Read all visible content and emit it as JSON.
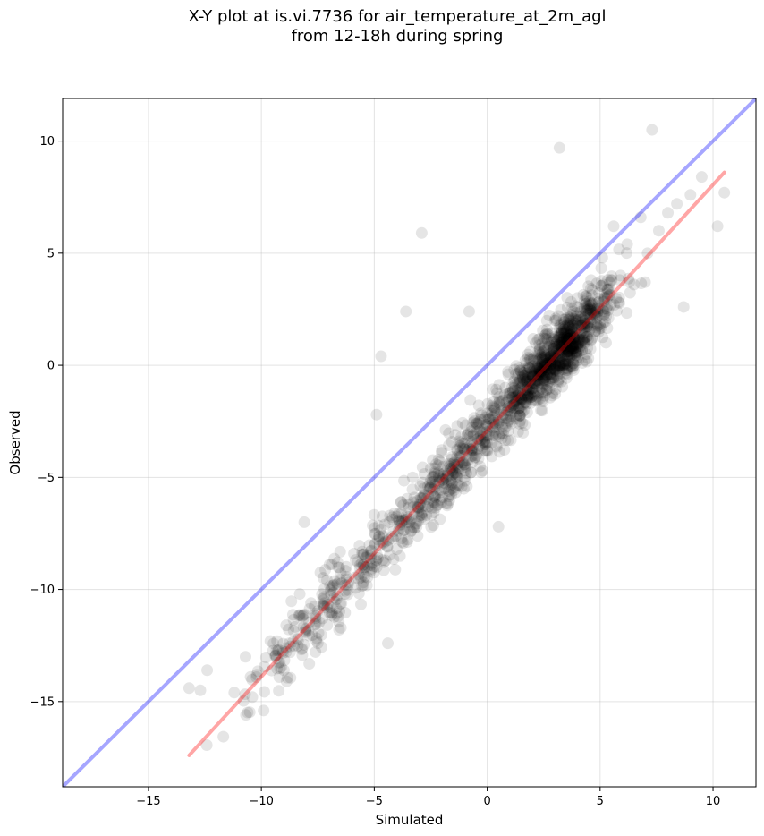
{
  "chart_data": {
    "type": "scatter",
    "title": "X-Y plot at is.vi.7736 for air_temperature_at_2m_agl",
    "subtitle": "from 12-18h during spring",
    "xlabel": "Simulated",
    "ylabel": "Observed",
    "xlim": [
      -18.8,
      11.9
    ],
    "ylim": [
      -18.8,
      11.9
    ],
    "xticks": [
      -15,
      -10,
      -5,
      0,
      5,
      10
    ],
    "xtick_labels": [
      "−15",
      "−10",
      "−5",
      "0",
      "5",
      "10"
    ],
    "yticks": [
      -15,
      -10,
      -5,
      0,
      5,
      10
    ],
    "ytick_labels": [
      "−15",
      "−10",
      "−5",
      "0",
      "5",
      "10"
    ],
    "grid": true,
    "point_color": "#000000",
    "point_alpha": 0.1,
    "identity_line": {
      "x": [
        -18.8,
        11.9
      ],
      "y": [
        -18.8,
        11.9
      ],
      "color": "#0000ff",
      "alpha": 0.35
    },
    "fit_line": {
      "x": [
        -13.2,
        10.5
      ],
      "y": [
        -17.4,
        8.6
      ],
      "color": "#ff0000",
      "alpha": 0.35
    },
    "points_note": "dense cloud of ~2000 semi-transparent points clustered along the fit line",
    "sample_points": [
      [
        -13.2,
        -14.4
      ],
      [
        -12.7,
        -14.5
      ],
      [
        -12.4,
        -13.6
      ],
      [
        -11.2,
        -14.6
      ],
      [
        -10.7,
        -13.0
      ],
      [
        -10.4,
        -14.8
      ],
      [
        -10.2,
        -13.8
      ],
      [
        -9.9,
        -15.4
      ],
      [
        -9.6,
        -12.3
      ],
      [
        -9.0,
        -13.6
      ],
      [
        -8.9,
        -11.6
      ],
      [
        -8.3,
        -10.2
      ],
      [
        -8.1,
        -7.0
      ],
      [
        -7.6,
        -11.2
      ],
      [
        -7.2,
        -10.8
      ],
      [
        -6.8,
        -9.8
      ],
      [
        -6.3,
        -10.2
      ],
      [
        -5.9,
        -8.4
      ],
      [
        -5.4,
        -9.0
      ],
      [
        -5.0,
        -8.0
      ],
      [
        -4.9,
        -2.2
      ],
      [
        -4.7,
        0.4
      ],
      [
        -4.6,
        -7.6
      ],
      [
        -4.4,
        -12.4
      ],
      [
        -4.1,
        -6.6
      ],
      [
        -3.8,
        -7.0
      ],
      [
        -3.6,
        2.4
      ],
      [
        -3.3,
        -5.0
      ],
      [
        -3.0,
        -6.2
      ],
      [
        -2.9,
        5.9
      ],
      [
        -2.5,
        -4.6
      ],
      [
        -2.1,
        -6.0
      ],
      [
        -1.6,
        -4.2
      ],
      [
        -1.2,
        -3.6
      ],
      [
        -0.9,
        -5.4
      ],
      [
        -0.8,
        2.4
      ],
      [
        -0.5,
        -2.6
      ],
      [
        -0.2,
        -3.0
      ],
      [
        0.2,
        -1.8
      ],
      [
        0.5,
        -7.2
      ],
      [
        0.8,
        -1.0
      ],
      [
        1.2,
        -0.2
      ],
      [
        1.5,
        -2.0
      ],
      [
        1.9,
        0.6
      ],
      [
        2.2,
        -1.4
      ],
      [
        2.5,
        1.2
      ],
      [
        2.8,
        -0.4
      ],
      [
        3.0,
        2.0
      ],
      [
        3.2,
        9.7
      ],
      [
        3.4,
        1.6
      ],
      [
        3.6,
        0.6
      ],
      [
        3.8,
        2.4
      ],
      [
        4.0,
        3.0
      ],
      [
        4.3,
        1.0
      ],
      [
        4.6,
        3.8
      ],
      [
        4.9,
        2.6
      ],
      [
        5.1,
        4.8
      ],
      [
        5.3,
        3.2
      ],
      [
        5.6,
        6.2
      ],
      [
        5.9,
        4.0
      ],
      [
        6.2,
        5.4
      ],
      [
        6.5,
        3.6
      ],
      [
        6.8,
        6.6
      ],
      [
        7.1,
        5.0
      ],
      [
        7.3,
        10.5
      ],
      [
        7.6,
        6.0
      ],
      [
        8.0,
        6.8
      ],
      [
        8.4,
        7.2
      ],
      [
        8.7,
        2.6
      ],
      [
        9.0,
        7.6
      ],
      [
        9.5,
        8.4
      ],
      [
        10.2,
        6.2
      ],
      [
        10.5,
        7.7
      ]
    ]
  }
}
